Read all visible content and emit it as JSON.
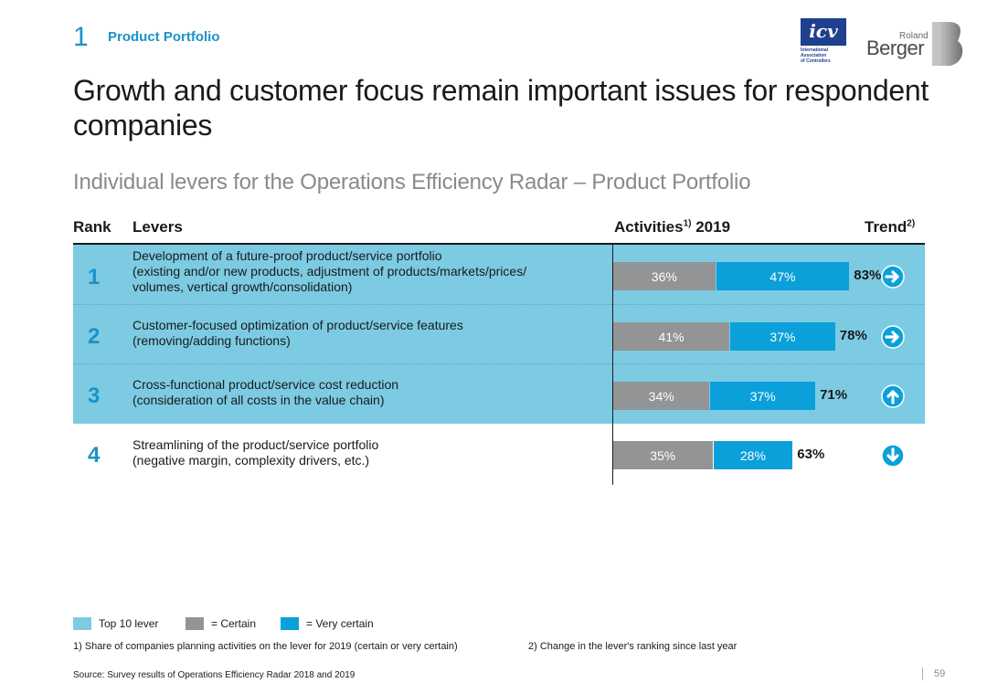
{
  "section": {
    "number": "1",
    "title": "Product Portfolio"
  },
  "headline": "Growth and customer focus remain important issues for respondent companies",
  "subheadline": "Individual levers for the Operations Efficiency Radar – Product Portfolio",
  "columns": {
    "rank": "Rank",
    "levers": "Levers",
    "activities": "Activities",
    "activities_sup": "1)",
    "activities_year": " 2019",
    "trend": "Trend",
    "trend_sup": "2)"
  },
  "logos": {
    "icv_text": "icv",
    "icv_sub1": "International",
    "icv_sub2": "Association",
    "icv_sub3": "of Controllers",
    "rb_roland": "Roland",
    "rb_berger": "Berger"
  },
  "rows": [
    {
      "rank": "1",
      "lines": [
        "Development of a future-proof product/service portfolio",
        "(existing and/or new products, adjustment of products/markets/prices/",
        "volumes, vertical growth/consolidation)"
      ],
      "certain_label": "36%",
      "very_label": "47%",
      "total_label": "83%",
      "trend": "right",
      "top10": true
    },
    {
      "rank": "2",
      "lines": [
        "Customer-focused optimization of product/service features",
        "(removing/adding functions)"
      ],
      "certain_label": "41%",
      "very_label": "37%",
      "total_label": "78%",
      "trend": "right",
      "top10": true
    },
    {
      "rank": "3",
      "lines": [
        "Cross-functional product/service cost reduction",
        "(consideration of all costs in the value chain)"
      ],
      "certain_label": "34%",
      "very_label": "37%",
      "total_label": "71%",
      "trend": "up",
      "top10": true
    },
    {
      "rank": "4",
      "lines": [
        "Streamlining of the product/service portfolio",
        "(negative margin, complexity drivers, etc.)"
      ],
      "certain_label": "35%",
      "very_label": "28%",
      "total_label": "63%",
      "trend": "down",
      "top10": false
    }
  ],
  "chart_data": {
    "type": "bar",
    "stacked": true,
    "orientation": "horizontal",
    "categories": [
      "1",
      "2",
      "3",
      "4"
    ],
    "series": [
      {
        "name": "Certain",
        "values": [
          36,
          41,
          34,
          35
        ],
        "color": "#929496"
      },
      {
        "name": "Very certain",
        "values": [
          47,
          37,
          37,
          28
        ],
        "color": "#0ba0da"
      }
    ],
    "totals": [
      83,
      78,
      71,
      63
    ],
    "title": "Activities 2019",
    "unit": "%",
    "xlim": [
      0,
      100
    ]
  },
  "legend": {
    "top10": "Top 10 lever",
    "certain": "= Certain",
    "very": "= Very certain",
    "top10_color": "#7ccbe3",
    "certain_color": "#929496",
    "very_color": "#0ba0da"
  },
  "footnotes": {
    "fn1": "1) Share of companies planning activities on the lever for 2019 (certain or very certain)",
    "fn2": "2) Change in the lever's ranking since last year"
  },
  "source": "Source: Survey results of Operations Efficiency Radar 2018 and 2019",
  "page_number": "59"
}
